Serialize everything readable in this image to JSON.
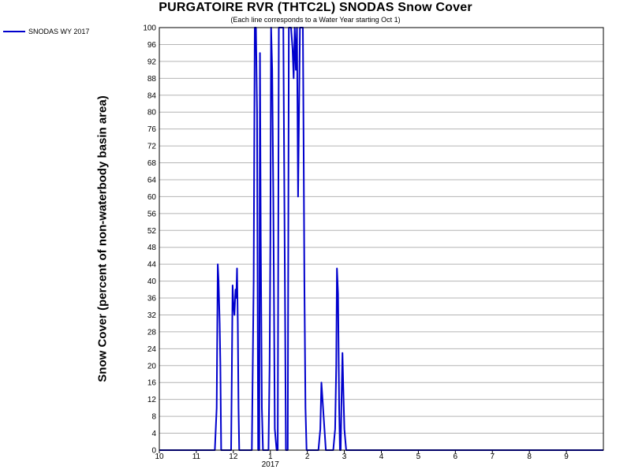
{
  "chart_data": {
    "type": "line",
    "title": "PURGATOIRE RVR (THTC2L) SNODAS Snow Cover",
    "subtitle": "(Each line corresponds to a Water Year starting Oct 1)",
    "ylabel": "Snow Cover (percent of non-waterbody basin area)",
    "xlabel": "",
    "year_label": "2017",
    "ylim": [
      0,
      100
    ],
    "yticks": [
      0,
      4,
      8,
      12,
      16,
      20,
      24,
      28,
      32,
      36,
      40,
      44,
      48,
      52,
      56,
      60,
      64,
      68,
      72,
      76,
      80,
      84,
      88,
      92,
      96,
      100
    ],
    "xlim": [
      0,
      12
    ],
    "xticks": [
      {
        "pos": 0,
        "label": "10"
      },
      {
        "pos": 1,
        "label": "11"
      },
      {
        "pos": 2,
        "label": "12"
      },
      {
        "pos": 3,
        "label": "1"
      },
      {
        "pos": 4,
        "label": "2"
      },
      {
        "pos": 5,
        "label": "3"
      },
      {
        "pos": 6,
        "label": "4"
      },
      {
        "pos": 7,
        "label": "5"
      },
      {
        "pos": 8,
        "label": "6"
      },
      {
        "pos": 9,
        "label": "7"
      },
      {
        "pos": 10,
        "label": "8"
      },
      {
        "pos": 11,
        "label": "9"
      }
    ],
    "grid": true,
    "legend_position": "top-left",
    "series": [
      {
        "name": "SNODAS WY 2017",
        "color": "#0000cc",
        "x": [
          0,
          1.5,
          1.55,
          1.58,
          1.6,
          1.63,
          1.65,
          1.67,
          1.7,
          1.72,
          1.94,
          1.96,
          1.98,
          2.0,
          2.03,
          2.06,
          2.08,
          2.1,
          2.12,
          2.14,
          2.16,
          2.2,
          2.22,
          2.5,
          2.55,
          2.58,
          2.61,
          2.64,
          2.67,
          2.7,
          2.72,
          2.74,
          2.77,
          2.8,
          2.85,
          2.95,
          2.98,
          3.0,
          3.02,
          3.05,
          3.08,
          3.12,
          3.17,
          3.2,
          3.23,
          3.27,
          3.3,
          3.35,
          3.42,
          3.47,
          3.5,
          3.53,
          3.56,
          3.6,
          3.63,
          3.66,
          3.69,
          3.72,
          3.75,
          3.8,
          3.83,
          3.86,
          3.88,
          3.9,
          3.92,
          3.95,
          3.98,
          4.05,
          4.3,
          4.35,
          4.38,
          4.41,
          4.44,
          4.47,
          4.5,
          4.7,
          4.75,
          4.78,
          4.8,
          4.83,
          4.86,
          4.88,
          4.9,
          4.92,
          4.95,
          4.97,
          5.0,
          5.05,
          5.1,
          5.7,
          12
        ],
        "values": [
          0,
          0,
          10,
          44,
          40,
          30,
          20,
          0,
          0,
          0,
          0,
          20,
          39,
          35,
          32,
          38,
          36,
          43,
          30,
          10,
          0,
          0,
          0,
          0,
          40,
          100,
          100,
          80,
          0,
          0,
          94,
          50,
          10,
          0,
          0,
          0,
          20,
          50,
          100,
          90,
          60,
          5,
          0,
          0,
          100,
          100,
          100,
          100,
          0,
          0,
          100,
          100,
          100,
          95,
          88,
          100,
          90,
          100,
          60,
          100,
          100,
          100,
          100,
          70,
          40,
          10,
          0,
          0,
          0,
          5,
          16,
          12,
          8,
          4,
          0,
          0,
          5,
          20,
          43,
          37,
          10,
          0,
          0,
          10,
          23,
          15,
          5,
          0,
          0,
          0,
          0
        ]
      }
    ]
  }
}
